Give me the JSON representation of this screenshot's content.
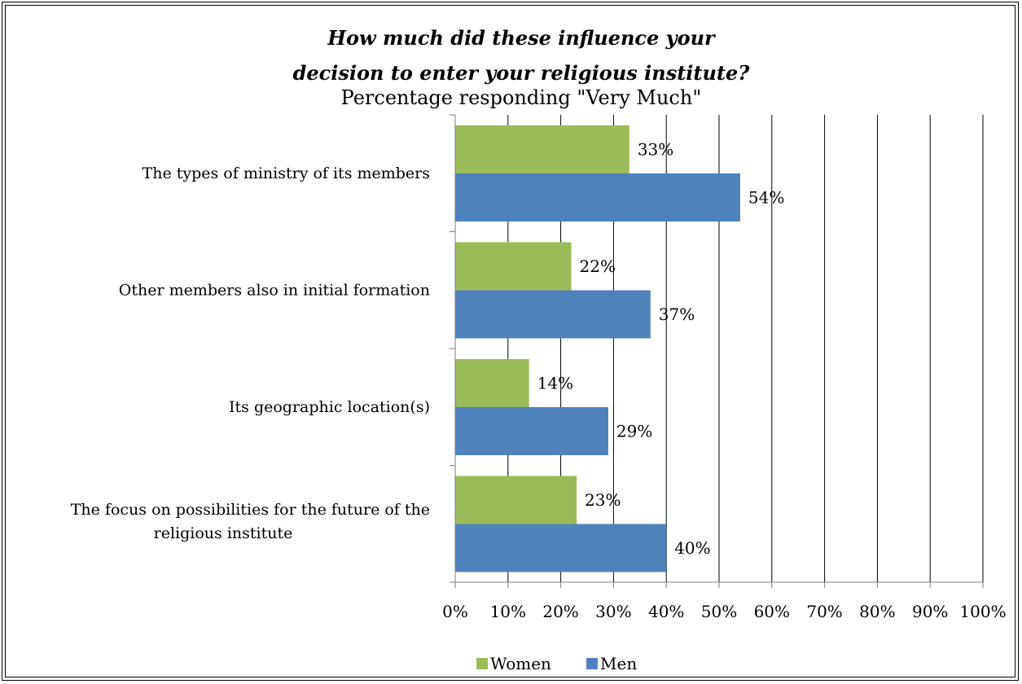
{
  "chart_data": {
    "type": "bar",
    "orientation": "horizontal",
    "title_lines": [
      "How much did these influence your",
      "decision to enter your religious institute?"
    ],
    "subtitle": "Percentage responding \"Very Much\"",
    "categories": [
      [
        "The types of ministry of its members"
      ],
      [
        "Other members also in initial formation"
      ],
      [
        "Its geographic location(s)"
      ],
      [
        "The focus on possibilities for the future of the",
        "religious institute"
      ]
    ],
    "series": [
      {
        "name": "Women",
        "color": "#9bbb59",
        "values": [
          33,
          22,
          14,
          23
        ],
        "labels": [
          "33%",
          "22%",
          "14%",
          "23%"
        ]
      },
      {
        "name": "Men",
        "color": "#4f81bd",
        "values": [
          54,
          37,
          29,
          40
        ],
        "labels": [
          "54%",
          "37%",
          "29%",
          "40%"
        ]
      }
    ],
    "xlim": [
      0,
      100
    ],
    "x_ticks": [
      0,
      10,
      20,
      30,
      40,
      50,
      60,
      70,
      80,
      90,
      100
    ],
    "x_tick_labels": [
      "0%",
      "10%",
      "20%",
      "30%",
      "40%",
      "50%",
      "60%",
      "70%",
      "80%",
      "90%",
      "100%"
    ],
    "grid": true,
    "legend_position": "bottom"
  }
}
